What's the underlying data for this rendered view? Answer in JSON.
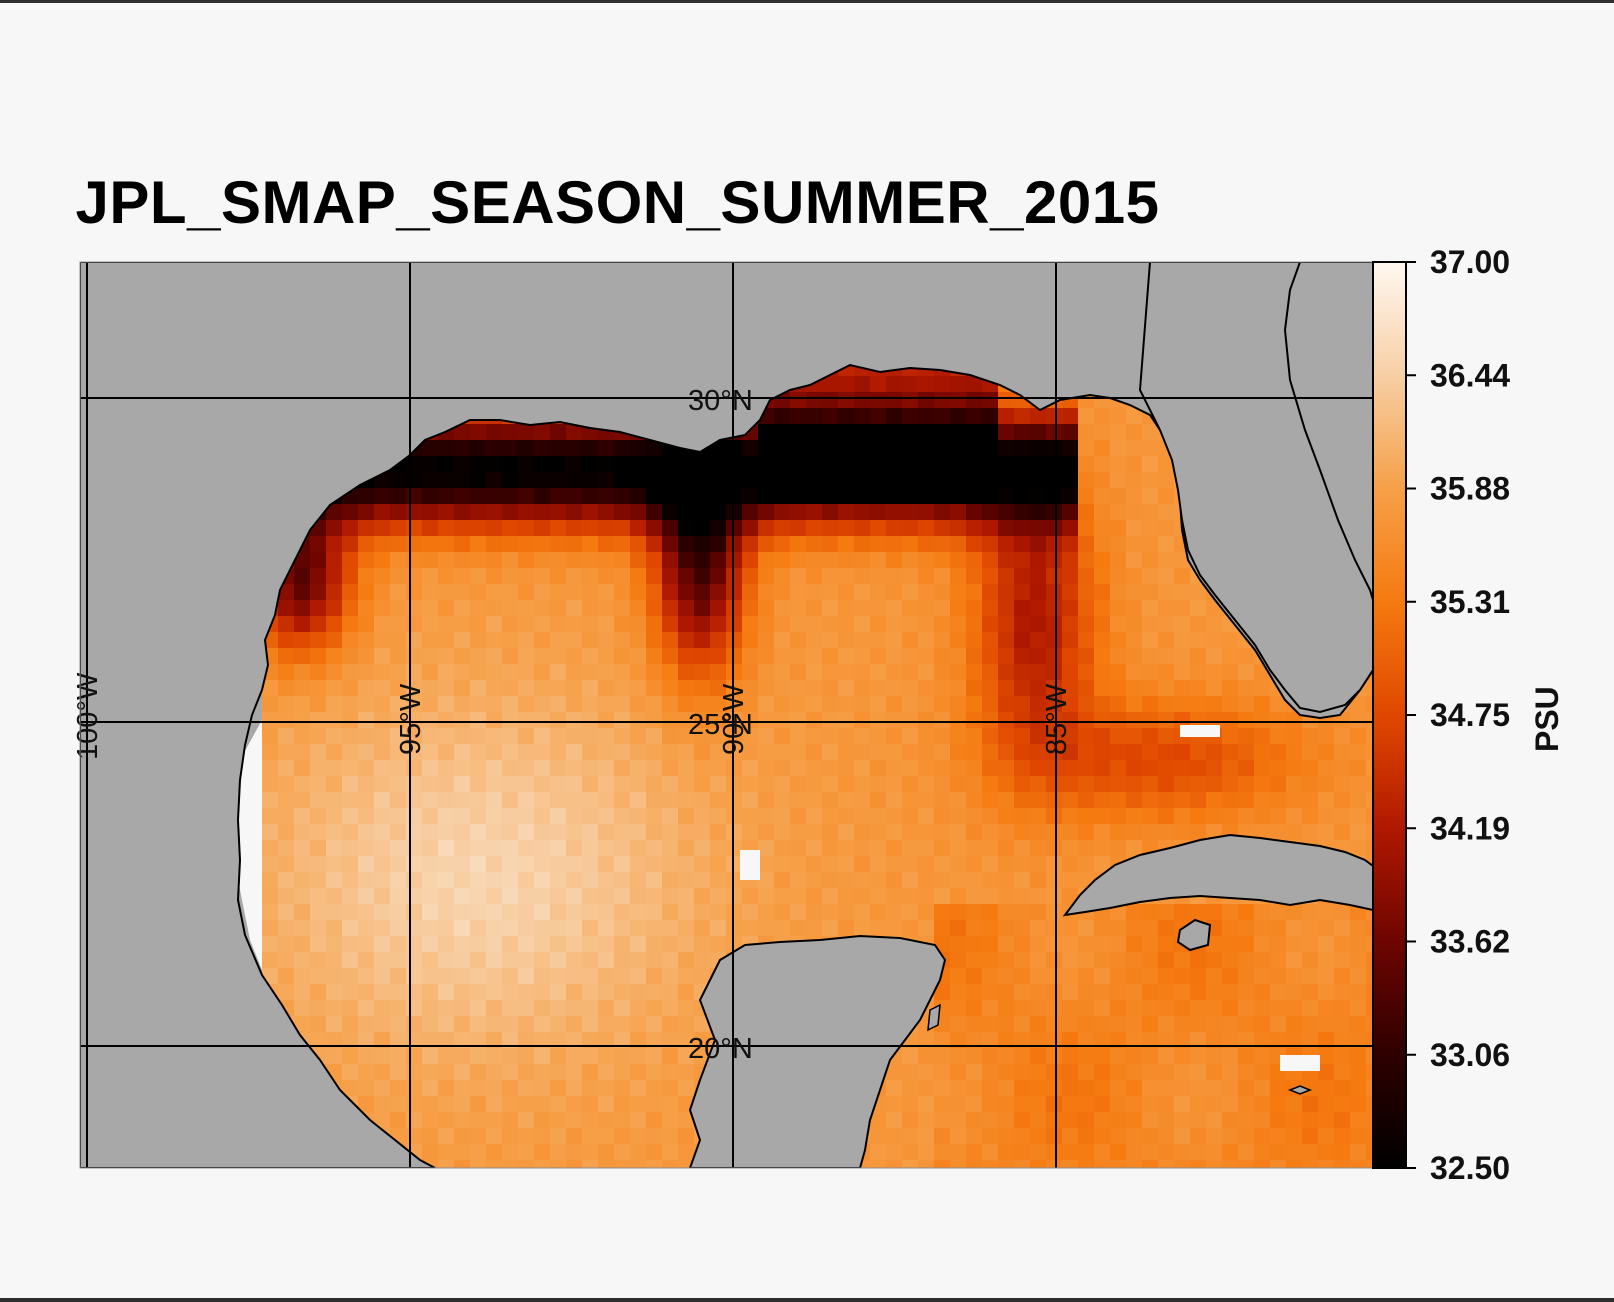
{
  "title": "JPL_SMAP_SEASON_SUMMER_2015",
  "colorbar": {
    "unit_label": "PSU",
    "min": 32.5,
    "max": 37.0,
    "tick_labels": [
      "37.00",
      "36.44",
      "35.88",
      "35.31",
      "34.75",
      "34.19",
      "33.62",
      "33.06",
      "32.50"
    ],
    "colors": [
      "#000000",
      "#2e0000",
      "#6e0500",
      "#b01800",
      "#e04800",
      "#f57a10",
      "#f6a049",
      "#f7cfa5",
      "#fff8f0"
    ]
  },
  "map": {
    "land_color": "#a8a8a8",
    "nodata_color": "#f7f7f7",
    "lon_labels": [
      "100°W",
      "95°W",
      "90°W",
      "85°W"
    ],
    "lat_labels": [
      "30°N",
      "25°N",
      "20°N"
    ],
    "lon_range": [
      -100.1,
      -80.1
    ],
    "lat_range": [
      18.1,
      32.1
    ]
  }
}
